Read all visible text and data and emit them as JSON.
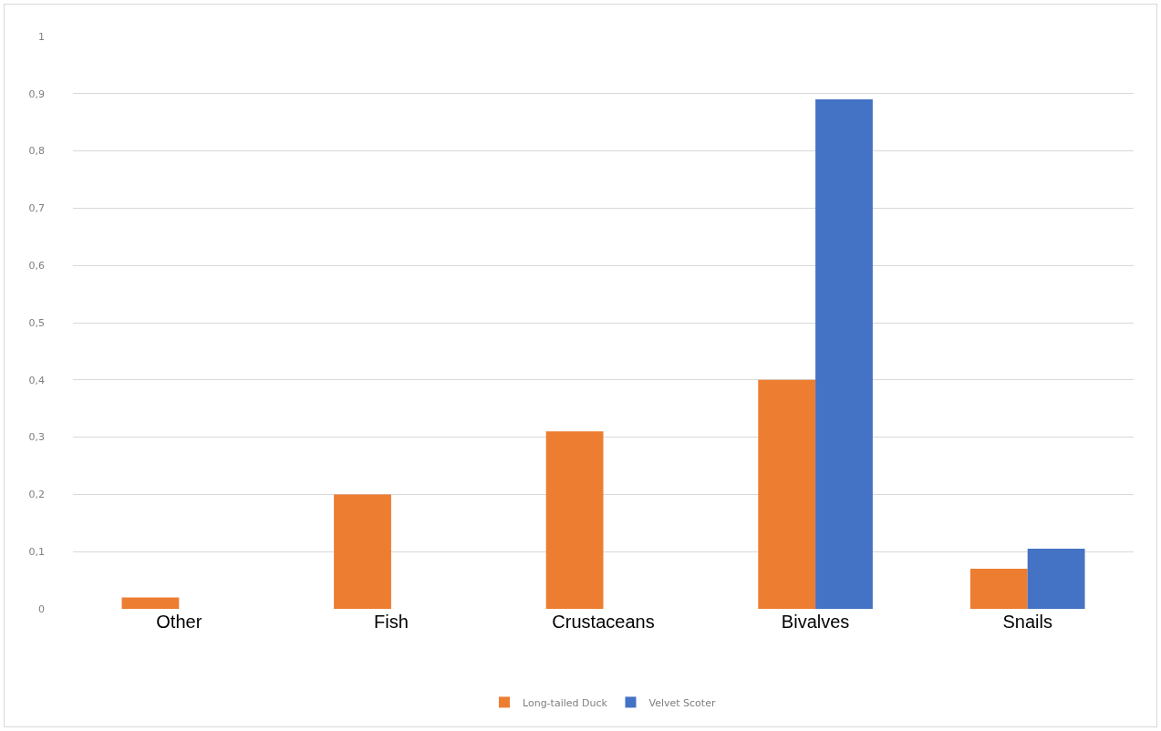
{
  "chart_data": {
    "type": "bar",
    "categories": [
      "Other",
      "Fish",
      "Crustaceans",
      "Bivalves",
      "Snails"
    ],
    "series": [
      {
        "name": "Long-tailed Duck",
        "color": "#ed7d31",
        "values": [
          0.02,
          0.2,
          0.31,
          0.4,
          0.07
        ]
      },
      {
        "name": "Velvet Scoter",
        "color": "#4472c4",
        "values": [
          0,
          0,
          0,
          0.89,
          0.105
        ]
      }
    ],
    "ylim": [
      0,
      1
    ],
    "yticks": [
      0,
      {
        "value": 0.1,
        "label": "0,1"
      },
      {
        "value": 0.2,
        "label": "0,2"
      },
      {
        "value": 0.3,
        "label": "0,3"
      },
      {
        "value": 0.4,
        "label": "0,4"
      },
      {
        "value": 0.5,
        "label": "0,5"
      },
      {
        "value": 0.6,
        "label": "0,6"
      },
      {
        "value": 0.7,
        "label": "0,7"
      },
      {
        "value": 0.8,
        "label": "0,8"
      },
      {
        "value": 0.9,
        "label": "0,9"
      },
      1
    ],
    "grid": "y",
    "legend": "bottom"
  }
}
